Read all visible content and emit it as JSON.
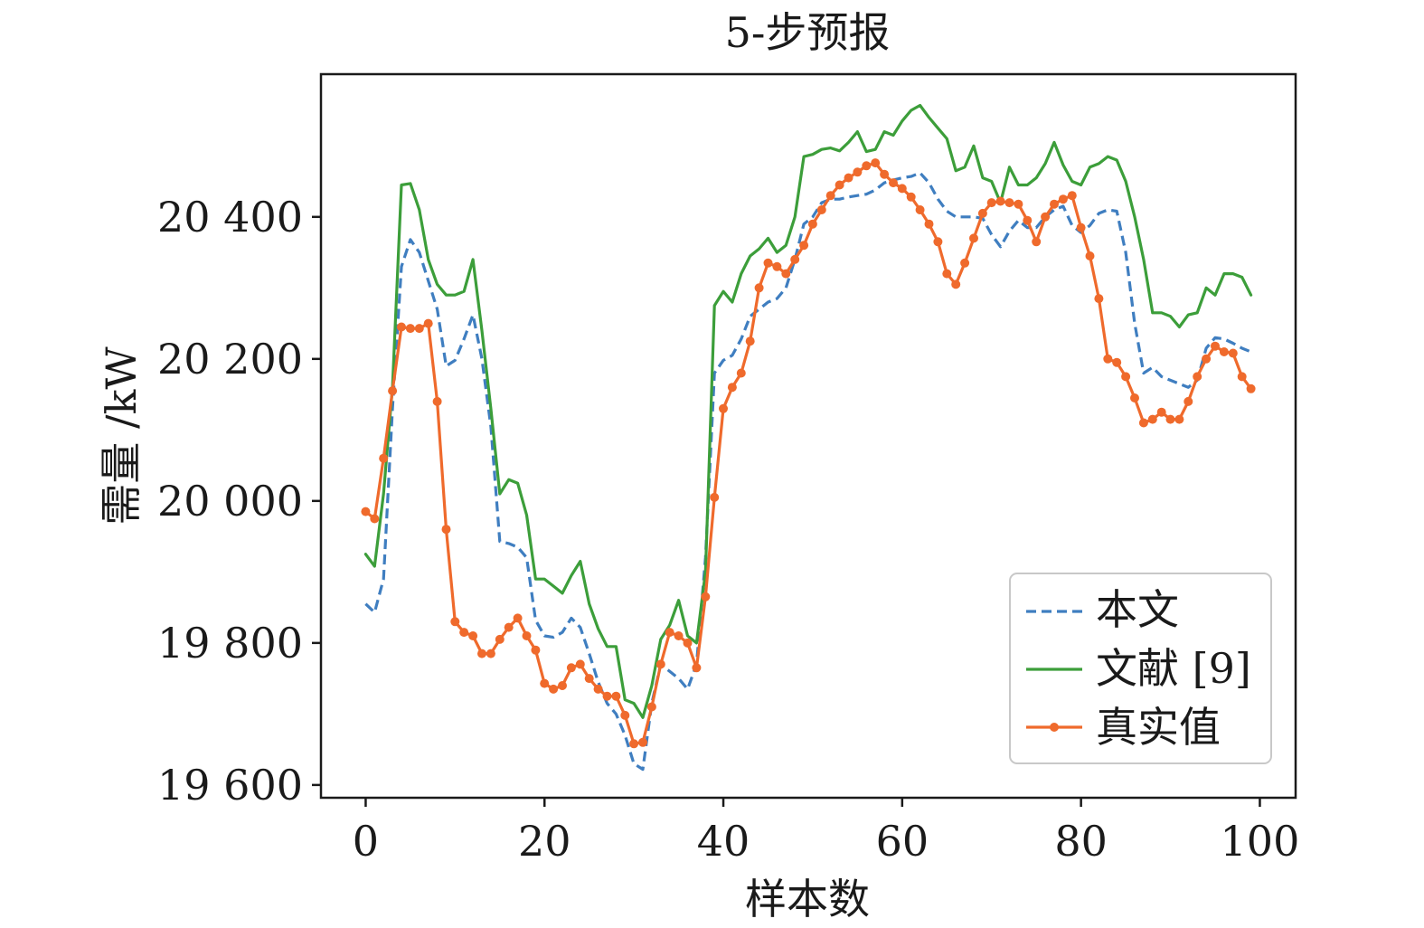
{
  "chart_data": {
    "type": "line",
    "title": "5-步预报",
    "xlabel": "样本数",
    "ylabel": "需量 /kW",
    "xlim": [
      -5,
      104
    ],
    "ylim": [
      19582,
      20601
    ],
    "x_ticks": [
      0,
      20,
      40,
      60,
      80,
      100
    ],
    "x_tick_labels": [
      "0",
      "20",
      "40",
      "60",
      "80",
      "100"
    ],
    "y_ticks": [
      19600,
      19800,
      20000,
      20200,
      20400
    ],
    "y_tick_labels": [
      "19 600",
      "19 800",
      "20 000",
      "20 200",
      "20 400"
    ],
    "grid": false,
    "legend_position": "lower-right",
    "x": [
      0,
      1,
      2,
      3,
      4,
      5,
      6,
      7,
      8,
      9,
      10,
      11,
      12,
      13,
      14,
      15,
      16,
      17,
      18,
      19,
      20,
      21,
      22,
      23,
      24,
      25,
      26,
      27,
      28,
      29,
      30,
      31,
      32,
      33,
      34,
      35,
      36,
      37,
      38,
      39,
      40,
      41,
      42,
      43,
      44,
      45,
      46,
      47,
      48,
      49,
      50,
      51,
      52,
      53,
      54,
      55,
      56,
      57,
      58,
      59,
      60,
      61,
      62,
      63,
      64,
      65,
      66,
      67,
      68,
      69,
      70,
      71,
      72,
      73,
      74,
      75,
      76,
      77,
      78,
      79,
      80,
      81,
      82,
      83,
      84,
      85,
      86,
      87,
      88,
      89,
      90,
      91,
      92,
      93,
      94,
      95,
      96,
      97,
      98,
      99
    ],
    "series": [
      {
        "name": "本文",
        "color": "#3f7ec0",
        "style": "dashed",
        "values": [
          19855,
          19843,
          19890,
          20130,
          20330,
          20368,
          20350,
          20310,
          20270,
          20190,
          20198,
          20228,
          20262,
          20200,
          20105,
          19943,
          19940,
          19935,
          19920,
          19832,
          19810,
          19808,
          19815,
          19835,
          19822,
          19785,
          19745,
          19715,
          19700,
          19670,
          19630,
          19622,
          19715,
          19770,
          19760,
          19750,
          19735,
          19770,
          19920,
          20180,
          20198,
          20205,
          20228,
          20260,
          20270,
          20280,
          20285,
          20300,
          20340,
          20390,
          20400,
          20420,
          20425,
          20425,
          20428,
          20430,
          20432,
          20438,
          20448,
          20452,
          20455,
          20457,
          20462,
          20448,
          20425,
          20408,
          20400,
          20400,
          20400,
          20398,
          20375,
          20358,
          20380,
          20395,
          20385,
          20385,
          20400,
          20410,
          20415,
          20388,
          20378,
          20388,
          20405,
          20410,
          20408,
          20350,
          20250,
          20180,
          20188,
          20175,
          20170,
          20165,
          20160,
          20170,
          20215,
          20230,
          20228,
          20222,
          20215,
          20210
        ]
      },
      {
        "name": "文献 [9]",
        "color": "#3c9e3a",
        "style": "solid",
        "values": [
          19925,
          19908,
          20010,
          20160,
          20445,
          20447,
          20410,
          20340,
          20305,
          20290,
          20290,
          20295,
          20340,
          20240,
          20130,
          20010,
          20030,
          20025,
          19980,
          19890,
          19890,
          19880,
          19870,
          19895,
          19915,
          19855,
          19820,
          19795,
          19795,
          19720,
          19715,
          19695,
          19740,
          19805,
          19825,
          19860,
          19810,
          19800,
          19900,
          20275,
          20295,
          20280,
          20320,
          20345,
          20355,
          20370,
          20350,
          20360,
          20400,
          20485,
          20488,
          20495,
          20497,
          20493,
          20505,
          20520,
          20492,
          20495,
          20520,
          20515,
          20535,
          20550,
          20557,
          20540,
          20525,
          20510,
          20465,
          20470,
          20500,
          20455,
          20450,
          20420,
          20470,
          20445,
          20445,
          20455,
          20475,
          20505,
          20473,
          20450,
          20445,
          20470,
          20475,
          20485,
          20480,
          20450,
          20400,
          20340,
          20265,
          20265,
          20260,
          20245,
          20262,
          20265,
          20300,
          20290,
          20320,
          20320,
          20315,
          20290
        ]
      },
      {
        "name": "真实值",
        "color": "#ef6a2c",
        "style": "solid-marker",
        "values": [
          19985,
          19975,
          20060,
          20155,
          20245,
          20243,
          20243,
          20250,
          20140,
          19960,
          19830,
          19815,
          19810,
          19785,
          19785,
          19805,
          19822,
          19835,
          19810,
          19790,
          19743,
          19735,
          19740,
          19765,
          19770,
          19750,
          19735,
          19725,
          19725,
          19698,
          19658,
          19660,
          19710,
          19770,
          19815,
          19810,
          19800,
          19765,
          19865,
          20005,
          20130,
          20160,
          20180,
          20225,
          20300,
          20335,
          20330,
          20320,
          20340,
          20360,
          20390,
          20410,
          20430,
          20445,
          20455,
          20463,
          20472,
          20476,
          20460,
          20448,
          20440,
          20428,
          20410,
          20390,
          20365,
          20320,
          20305,
          20335,
          20370,
          20405,
          20420,
          20422,
          20420,
          20418,
          20395,
          20365,
          20400,
          20418,
          20425,
          20430,
          20385,
          20345,
          20285,
          20200,
          20195,
          20175,
          20145,
          20110,
          20115,
          20125,
          20115,
          20115,
          20140,
          20175,
          20200,
          20218,
          20210,
          20208,
          20175,
          20158
        ]
      }
    ]
  }
}
